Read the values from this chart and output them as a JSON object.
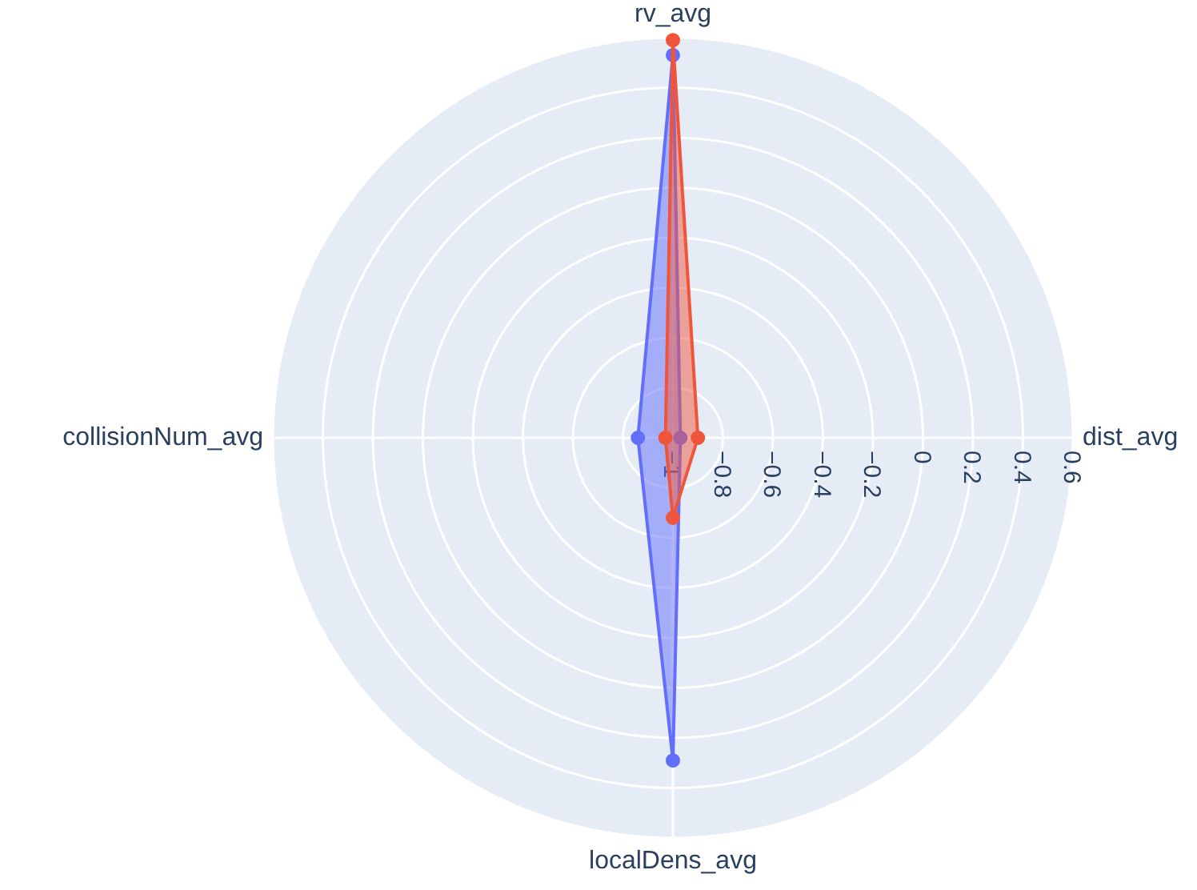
{
  "chart_data": {
    "type": "radar",
    "categories": [
      "rv_avg",
      "dist_avg",
      "localDens_avg",
      "collisionNum_avg"
    ],
    "series": [
      {
        "color": "#636efa",
        "values": [
          0.53,
          -0.97,
          0.29,
          -0.86
        ]
      },
      {
        "color": "#ef553b",
        "values": [
          0.59,
          -0.9,
          -0.68,
          -0.97
        ]
      }
    ],
    "ylim": [
      -1,
      0.6
    ],
    "yticks": [
      -1,
      -0.8,
      -0.6,
      -0.4,
      -0.2,
      0,
      0.2,
      0.4,
      0.6
    ],
    "grid": true,
    "marker": "circle"
  }
}
